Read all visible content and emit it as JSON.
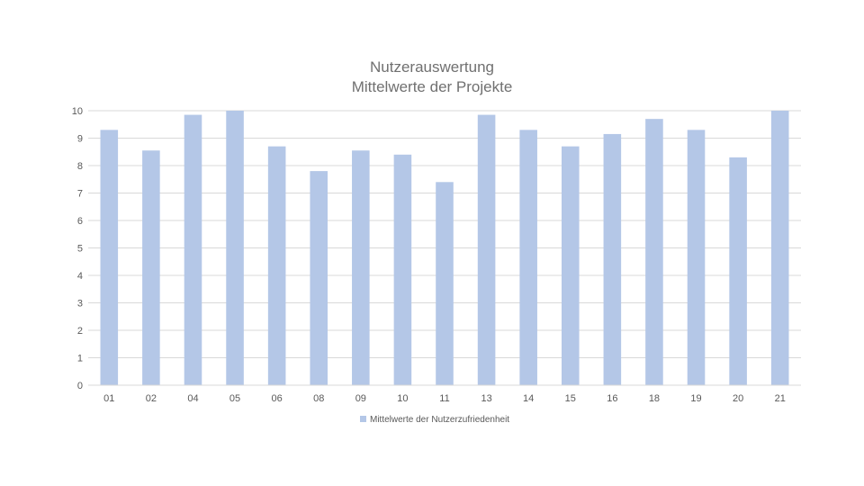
{
  "chart_data": {
    "type": "bar",
    "title": "Nutzerauswertung",
    "subtitle": "Mittelwerte der Projekte",
    "xlabel": "",
    "ylabel": "",
    "categories": [
      "01",
      "02",
      "04",
      "05",
      "06",
      "08",
      "09",
      "10",
      "11",
      "13",
      "14",
      "15",
      "16",
      "18",
      "19",
      "20",
      "21"
    ],
    "series": [
      {
        "name": "Mittelwerte der Nutzerzufriedenheit",
        "color": "#b4c7e7",
        "values": [
          9.3,
          8.55,
          9.85,
          10.0,
          8.7,
          7.8,
          8.55,
          8.4,
          7.4,
          9.85,
          9.3,
          8.7,
          9.15,
          9.7,
          9.3,
          8.3,
          10.0
        ]
      }
    ],
    "ylim": [
      0,
      10
    ],
    "yticks": [
      0,
      1,
      2,
      3,
      4,
      5,
      6,
      7,
      8,
      9,
      10
    ],
    "grid": true,
    "legend": "bottom",
    "gridline_color": "#d9d9d9"
  }
}
